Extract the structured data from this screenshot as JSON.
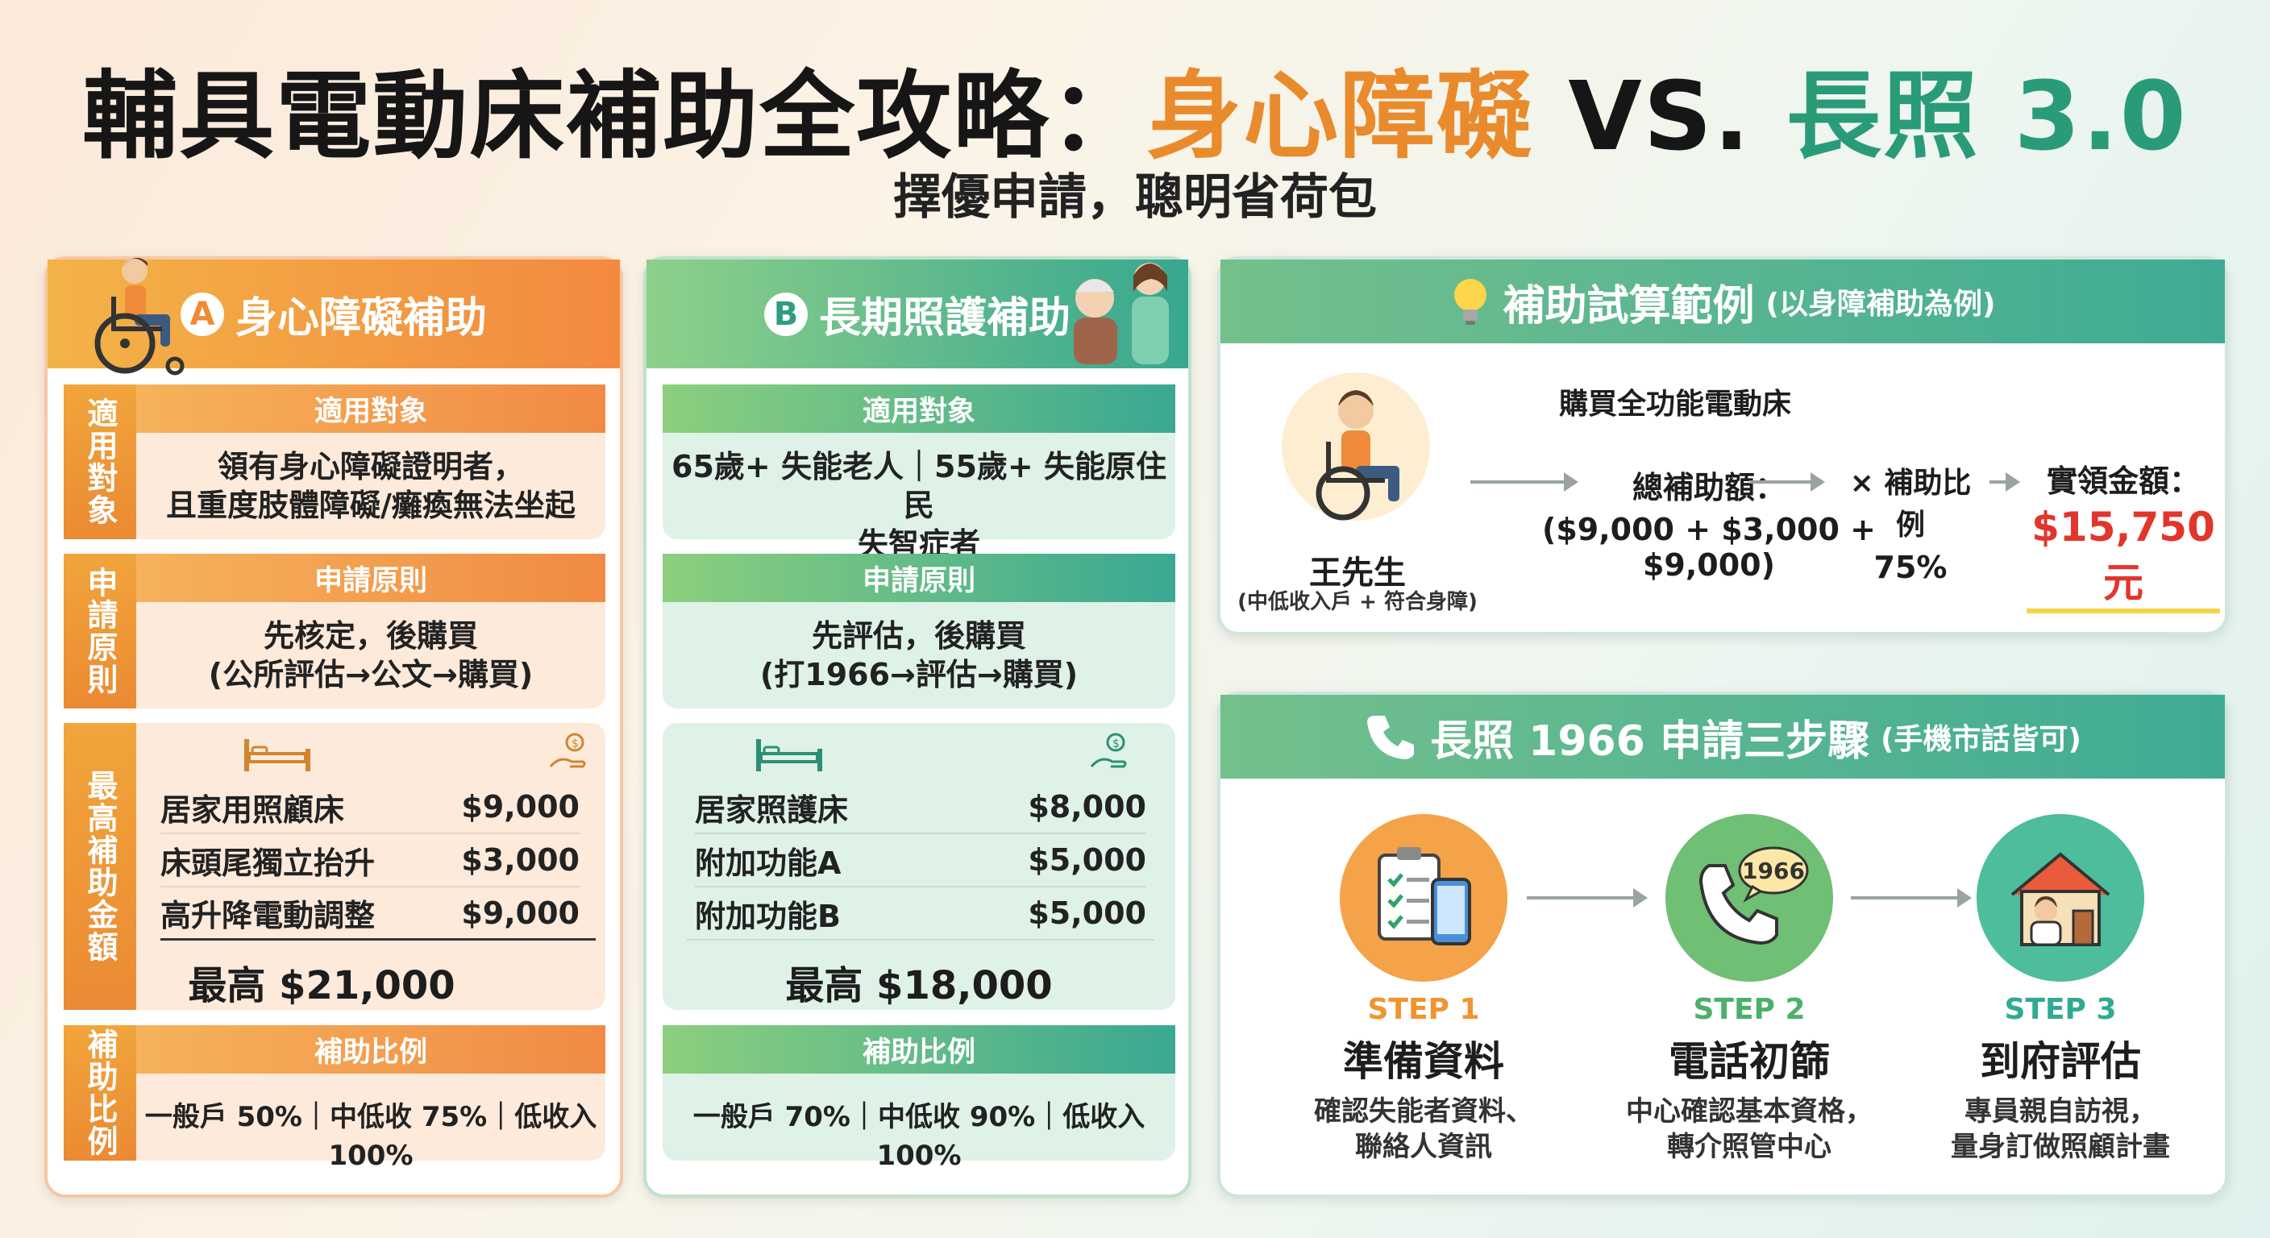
{
  "header": {
    "title_main": "輔具電動床補助全攻略：",
    "title_orange": "身心障礙",
    "title_vs": " VS. ",
    "title_green": "長照 3.0",
    "subtitle": "擇優申請，聰明省荷包"
  },
  "card_a": {
    "badge": "A",
    "title": "身心障礙補助",
    "target_side": "適用對象",
    "target_bar": "適用對象",
    "target_line1": "領有身心障礙證明者，",
    "target_line2": "且重度肢體障礙/癱瘓無法坐起",
    "principle_side": "申請原則",
    "principle_bar": "申請原則",
    "principle_line1": "先核定，後購買",
    "principle_line2": "(公所評估→公文→購買)",
    "amount_side": "最高補助金額",
    "items": [
      {
        "name": "居家用照顧床",
        "amount": "$9,000"
      },
      {
        "name": "床頭尾獨立抬升",
        "amount": "$3,000"
      },
      {
        "name": "高升降電動調整",
        "amount": "$9,000"
      }
    ],
    "total": "最高 $21,000",
    "ratio_side": "補助比例",
    "ratio_bar": "補助比例",
    "ratio_text": "一般戶 50%｜中低收 75%｜低收入 100%"
  },
  "card_b": {
    "badge": "B",
    "title": "長期照護補助",
    "target_bar": "適用對象",
    "target_line1": "65歲+ 失能老人｜55歲+ 失能原住民",
    "target_line2": "失智症者",
    "principle_bar": "申請原則",
    "principle_line1": "先評估，後購買",
    "principle_line2": "(打1966→評估→購買)",
    "items": [
      {
        "name": "居家照護床",
        "amount": "$8,000"
      },
      {
        "name": "附加功能A",
        "amount": "$5,000"
      },
      {
        "name": "附加功能B",
        "amount": "$5,000"
      }
    ],
    "total": "最高 $18,000",
    "ratio_bar": "補助比例",
    "ratio_text": "一般戶 70%｜中低收 90%｜低收入 100%"
  },
  "card_c": {
    "title": "補助試算範例",
    "title_note": "(以身障補助為例)",
    "purchase": "購買全功能電動床",
    "person_name": "王先生",
    "person_note": "(中低收入戶 + 符合身障)",
    "total_label": "總補助額：",
    "total_formula": "($9,000 + $3,000 + $9,000)",
    "ratio_label": "× 補助比例",
    "ratio_value": "75%",
    "actual_label": "實領金額：",
    "actual_value": "$15,750 元"
  },
  "card_d": {
    "title": "長照 1966 申請三步驟",
    "title_note": "(手機市話皆可)",
    "phone_badge": "1966",
    "steps": [
      {
        "no": "STEP 1",
        "title": "準備資料",
        "desc1": "確認失能者資料、",
        "desc2": "聯絡人資訊"
      },
      {
        "no": "STEP 2",
        "title": "電話初篩",
        "desc1": "中心確認基本資格，",
        "desc2": "轉介照管中心"
      },
      {
        "no": "STEP 3",
        "title": "到府評估",
        "desc1": "專員親自訪視，",
        "desc2": "量身訂做照顧計畫"
      }
    ]
  },
  "colors": {
    "orange": "#e98b2d",
    "green": "#2a9b78",
    "red_amount": "#e2352b"
  }
}
